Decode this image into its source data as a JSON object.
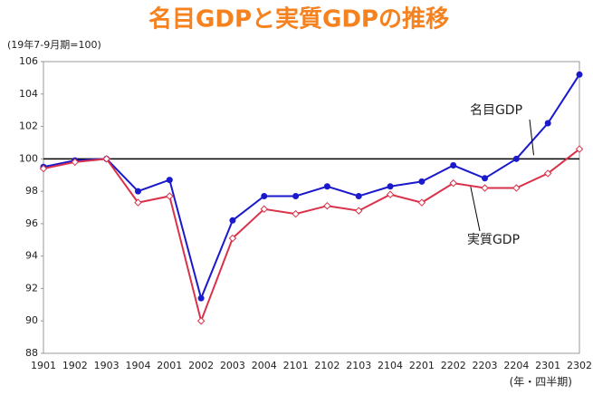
{
  "chart_data": {
    "type": "line",
    "title": "名目GDPと実質GDPの推移",
    "y_label": "(19年7-9月期=100)",
    "x_label": "(年・四半期)",
    "categories": [
      "1901",
      "1902",
      "1903",
      "1904",
      "2001",
      "2002",
      "2003",
      "2004",
      "2101",
      "2102",
      "2103",
      "2104",
      "2201",
      "2202",
      "2203",
      "2204",
      "2301",
      "2302"
    ],
    "series": [
      {
        "name": "名目GDP",
        "color": "#1a1acc",
        "marker": "circle",
        "values": [
          99.5,
          99.9,
          100.0,
          98.0,
          98.7,
          91.4,
          96.2,
          97.7,
          97.7,
          98.3,
          97.7,
          98.3,
          98.6,
          99.6,
          98.8,
          100.0,
          102.2,
          105.2
        ]
      },
      {
        "name": "実質GDP",
        "color": "#d9324a",
        "marker": "diamond",
        "values": [
          99.4,
          99.8,
          100.0,
          97.3,
          97.7,
          90.0,
          95.1,
          96.9,
          96.6,
          97.1,
          96.8,
          97.8,
          97.3,
          98.5,
          98.2,
          98.2,
          99.1,
          100.6
        ]
      }
    ],
    "reference_line": 100,
    "ylim": [
      88,
      106
    ],
    "yticks": [
      88,
      90,
      92,
      94,
      96,
      98,
      100,
      102,
      104,
      106
    ]
  }
}
